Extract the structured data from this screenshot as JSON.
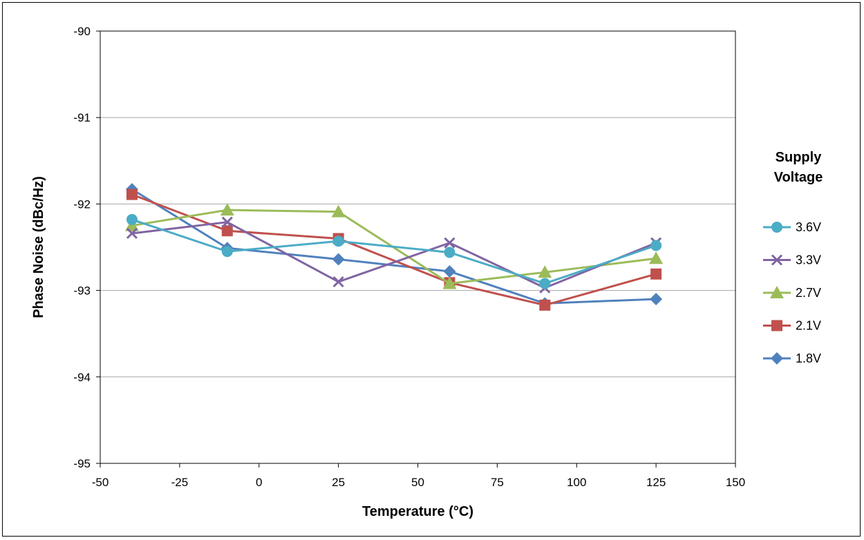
{
  "chart_data": {
    "type": "line",
    "title": "",
    "xlabel": "Temperature (°C)",
    "ylabel": "Phase Noise (dBc/Hz)",
    "xlim": [
      -50,
      150
    ],
    "ylim": [
      -95,
      -90
    ],
    "xticks": [
      -50,
      -25,
      0,
      25,
      50,
      75,
      100,
      125,
      150
    ],
    "yticks": [
      -95,
      -94,
      -93,
      -92,
      -91,
      -90
    ],
    "grid": "horizontal",
    "legend": {
      "title_lines": [
        "Supply",
        "Voltage"
      ],
      "position": "right"
    },
    "x": [
      -40,
      -10,
      25,
      60,
      90,
      125
    ],
    "series": [
      {
        "name": "3.6V",
        "color": "#4bacc6",
        "marker": "circle",
        "values": [
          -92.18,
          -92.55,
          -92.43,
          -92.56,
          -92.92,
          -92.48
        ]
      },
      {
        "name": "3.3V",
        "color": "#8064a2",
        "marker": "x",
        "values": [
          -92.34,
          -92.21,
          -92.9,
          -92.45,
          -92.97,
          -92.45
        ]
      },
      {
        "name": "2.7V",
        "color": "#9bbb59",
        "marker": "triangle",
        "values": [
          -92.25,
          -92.07,
          -92.09,
          -92.92,
          -92.79,
          -92.63
        ]
      },
      {
        "name": "2.1V",
        "color": "#c0504d",
        "marker": "square",
        "values": [
          -91.89,
          -92.31,
          -92.4,
          -92.91,
          -93.17,
          -92.81
        ]
      },
      {
        "name": "1.8V",
        "color": "#4f81bd",
        "marker": "diamond",
        "values": [
          -91.83,
          -92.51,
          -92.64,
          -92.78,
          -93.15,
          -93.1
        ]
      }
    ]
  }
}
